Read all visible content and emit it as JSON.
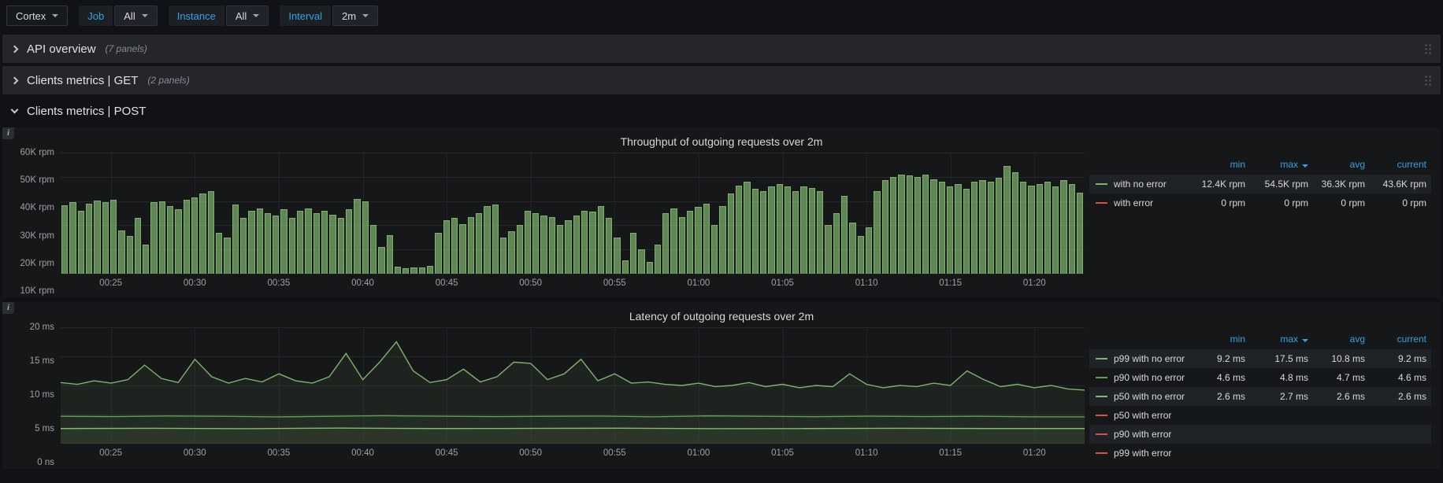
{
  "toolbar": {
    "datasource_label": "Cortex",
    "variables": [
      {
        "label": "Job",
        "value": "All"
      },
      {
        "label": "Instance",
        "value": "All"
      },
      {
        "label": "Interval",
        "value": "2m"
      }
    ]
  },
  "rows": [
    {
      "title": "API overview",
      "count": "(7 panels)"
    },
    {
      "title": "Clients metrics | GET",
      "count": "(2 panels)"
    },
    {
      "title": "Clients metrics | POST",
      "count": ""
    }
  ],
  "icons": {
    "panel_info": "i"
  },
  "colors": {
    "green": "#7eb26d",
    "red": "#e24d42",
    "blue": "#33a2e5"
  },
  "panels": [
    {
      "title": "Throughput of outgoing requests over 2m",
      "yticks": [
        "60K rpm",
        "50K rpm",
        "40K rpm",
        "30K rpm",
        "20K rpm",
        "10K rpm"
      ],
      "legend": {
        "columns": [
          "min",
          "max",
          "avg",
          "current"
        ],
        "sort_column": "max",
        "series": [
          {
            "name": "with no error",
            "color": "#7eb26d",
            "values": [
              "12.4K rpm",
              "54.5K rpm",
              "36.3K rpm",
              "43.6K rpm"
            ]
          },
          {
            "name": "with error",
            "color": "#e24d42",
            "values": [
              "0 rpm",
              "0 rpm",
              "0 rpm",
              "0 rpm"
            ]
          }
        ]
      }
    },
    {
      "title": "Latency of outgoing requests over 2m",
      "yticks": [
        "20 ms",
        "15 ms",
        "10 ms",
        "5 ms",
        "0 ns"
      ],
      "legend": {
        "columns": [
          "min",
          "max",
          "avg",
          "current"
        ],
        "sort_column": "max",
        "series": [
          {
            "name": "p99 with no error",
            "color": "#7eb26d",
            "values": [
              "9.2 ms",
              "17.5 ms",
              "10.8 ms",
              "9.2 ms"
            ]
          },
          {
            "name": "p90 with no error",
            "color": "#629e51",
            "values": [
              "4.6 ms",
              "4.8 ms",
              "4.7 ms",
              "4.6 ms"
            ]
          },
          {
            "name": "p50 with no error",
            "color": "#86b874",
            "values": [
              "2.6 ms",
              "2.7 ms",
              "2.6 ms",
              "2.6 ms"
            ]
          },
          {
            "name": "p50 with error",
            "color": "#e24d42",
            "values": [
              "",
              "",
              "",
              ""
            ]
          },
          {
            "name": "p90 with error",
            "color": "#e24d42",
            "values": [
              "",
              "",
              "",
              ""
            ]
          },
          {
            "name": "p99 with error",
            "color": "#e24d42",
            "values": [
              "",
              "",
              "",
              ""
            ]
          }
        ]
      }
    }
  ],
  "chart_data": [
    {
      "type": "bar",
      "title": "Throughput of outgoing requests over 2m",
      "ylabel": "rpm",
      "unit": "K rpm",
      "ylim": [
        10,
        60
      ],
      "grid": true,
      "legend_position": "right",
      "x_time_labels": [
        "00:25",
        "00:30",
        "00:35",
        "00:40",
        "00:45",
        "00:50",
        "00:55",
        "01:00",
        "01:05",
        "01:10",
        "01:15",
        "01:20"
      ],
      "x_start_pct": 4.9,
      "x_step_pct": 8.2,
      "series": [
        {
          "name": "with no error",
          "color": "#7eb26d",
          "values": [
            38.2,
            39.5,
            36.0,
            39.0,
            40.2,
            39.6,
            40.5,
            28.0,
            25.5,
            33.0,
            22.0,
            39.5,
            40.0,
            38.0,
            36.5,
            40.5,
            41.5,
            43.0,
            44.0,
            27.0,
            25.0,
            38.5,
            33.0,
            36.0,
            37.0,
            35.0,
            34.0,
            36.5,
            33.0,
            36.0,
            37.0,
            35.0,
            36.0,
            34.5,
            33.0,
            36.5,
            41.0,
            40.0,
            30.0,
            21.0,
            26.0,
            13.0,
            12.4,
            12.6,
            12.5,
            13.2,
            27.0,
            32.0,
            33.0,
            30.5,
            33.5,
            35.0,
            38.0,
            38.5,
            25.0,
            27.5,
            30.0,
            36.0,
            35.0,
            34.0,
            33.5,
            30.0,
            32.0,
            34.0,
            36.0,
            35.5,
            38.0,
            33.0,
            25.0,
            15.5,
            27.0,
            20.0,
            15.0,
            22.0,
            35.0,
            37.0,
            33.5,
            36.0,
            37.5,
            39.0,
            30.0,
            38.0,
            43.0,
            46.5,
            48.0,
            45.0,
            44.0,
            46.0,
            47.0,
            46.0,
            44.0,
            46.0,
            45.5,
            44.0,
            30.0,
            35.0,
            42.0,
            31.0,
            25.5,
            29.0,
            44.0,
            48.5,
            50.0,
            51.0,
            50.5,
            50.0,
            51.0,
            49.0,
            48.0,
            46.0,
            47.0,
            45.0,
            48.0,
            48.5,
            48.0,
            49.5,
            54.5,
            52.0,
            48.0,
            46.5,
            47.0,
            48.0,
            46.0,
            48.5,
            47.0,
            43.6
          ]
        },
        {
          "name": "with error",
          "color": "#e24d42",
          "values": []
        }
      ]
    },
    {
      "type": "line",
      "title": "Latency of outgoing requests over 2m",
      "ylabel": "ms",
      "unit": "ms",
      "ylim": [
        0,
        20
      ],
      "grid": true,
      "legend_position": "right",
      "x_time_labels": [
        "00:25",
        "00:30",
        "00:35",
        "00:40",
        "00:45",
        "00:50",
        "00:55",
        "01:00",
        "01:05",
        "01:10",
        "01:15",
        "01:20"
      ],
      "x_start_pct": 4.9,
      "x_step_pct": 8.2,
      "series": [
        {
          "name": "p99 with no error",
          "color": "#7eb26d",
          "values": [
            10.5,
            10.2,
            10.8,
            10.4,
            11.0,
            13.5,
            11.2,
            10.5,
            14.5,
            11.5,
            10.4,
            11.2,
            10.6,
            12.0,
            10.8,
            10.4,
            11.5,
            15.5,
            11.0,
            14.0,
            17.5,
            12.5,
            10.5,
            11.0,
            12.8,
            10.6,
            11.5,
            14.0,
            13.8,
            11.0,
            12.0,
            14.5,
            10.8,
            12.0,
            10.4,
            10.6,
            10.2,
            10.0,
            10.4,
            9.8,
            10.0,
            10.5,
            9.8,
            10.2,
            9.6,
            10.0,
            9.8,
            12.0,
            10.2,
            9.6,
            10.0,
            9.8,
            10.4,
            10.0,
            12.5,
            11.0,
            9.8,
            10.2,
            9.6,
            10.0,
            9.4,
            9.2
          ]
        },
        {
          "name": "p90 with no error",
          "color": "#629e51",
          "values": [
            4.7,
            4.65,
            4.75,
            4.7,
            4.6,
            4.7,
            4.8,
            4.72,
            4.65,
            4.7,
            4.74,
            4.62,
            4.78,
            4.7,
            4.64,
            4.72,
            4.66,
            4.7,
            4.62,
            4.6
          ]
        },
        {
          "name": "p50 with no error",
          "color": "#86b874",
          "values": [
            2.6,
            2.64,
            2.58,
            2.68,
            2.6,
            2.62,
            2.66,
            2.58,
            2.6,
            2.64,
            2.6,
            2.6
          ]
        },
        {
          "name": "p50 with error",
          "color": "#e24d42",
          "values": []
        },
        {
          "name": "p90 with error",
          "color": "#e24d42",
          "values": []
        },
        {
          "name": "p99 with error",
          "color": "#e24d42",
          "values": []
        }
      ]
    }
  ]
}
